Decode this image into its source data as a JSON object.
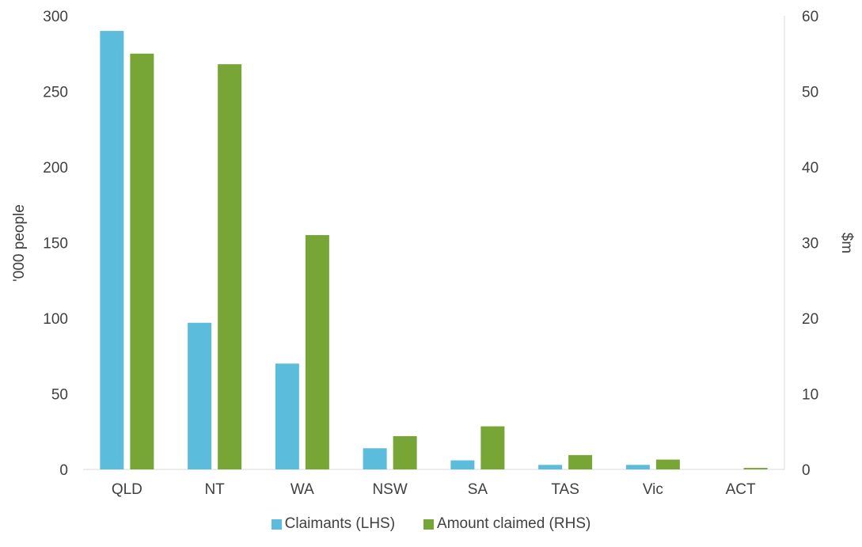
{
  "chart_data": {
    "type": "bar",
    "categories": [
      "QLD",
      "NT",
      "WA",
      "NSW",
      "SA",
      "TAS",
      "Vic",
      "ACT"
    ],
    "series": [
      {
        "name": "Claimants (LHS)",
        "axis": "left",
        "color": "#5BBCDC",
        "values": [
          290,
          97,
          70,
          14,
          6,
          3,
          3,
          0
        ]
      },
      {
        "name": "Amount claimed (RHS)",
        "axis": "right",
        "color": "#77A536",
        "values": [
          55,
          53.6,
          31,
          4.4,
          5.7,
          1.9,
          1.3,
          0.2
        ]
      }
    ],
    "ylabel_left": "'000 people",
    "ylabel_right": "$m",
    "ylim_left": [
      0,
      300
    ],
    "ylim_right": [
      0,
      60
    ],
    "yticks_left": [
      "0",
      "50",
      "100",
      "150",
      "200",
      "250",
      "300"
    ],
    "yticks_right": [
      "0",
      "10",
      "20",
      "30",
      "40",
      "50",
      "60"
    ],
    "grid": false,
    "legend_position": "bottom"
  }
}
